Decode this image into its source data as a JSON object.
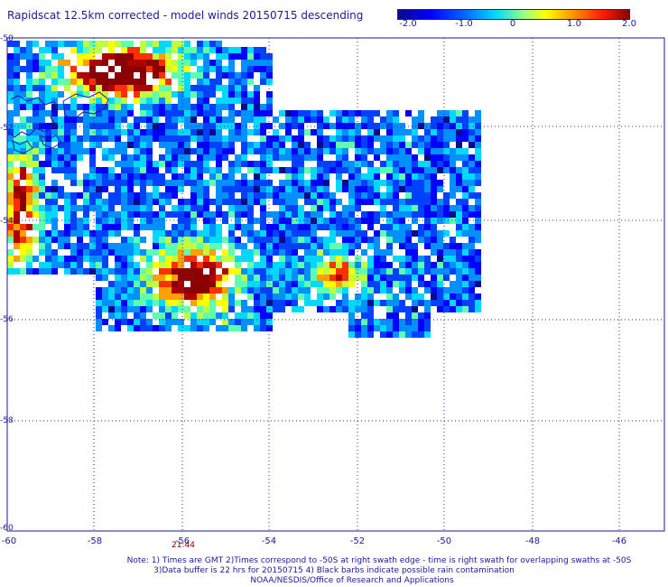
{
  "title": "Rapidscat 12.5km corrected - model winds 20150715 descending",
  "colorbar": {
    "ticks": [
      "-2.0",
      "-1.0",
      "0",
      "1.0",
      "2.0"
    ],
    "colors": [
      "#0a0a8a",
      "#0000ff",
      "#00d8ff",
      "#ffff00",
      "#ff2000",
      "#8b0000"
    ]
  },
  "axes": {
    "y_ticks": [
      "-50",
      "-52",
      "-54",
      "-56",
      "-58",
      "-60"
    ],
    "x_ticks": [
      "-60",
      "-58",
      "-56",
      "-54",
      "-52",
      "-50",
      "-48",
      "-46"
    ]
  },
  "time_label": "21:44",
  "notes": [
    "Note: 1) Times are GMT 2)Times correspond to -50S at right swath edge - time is right swath for overlapping swaths at -50S",
    "3)Data buffer is 22 hrs for 20150715 4) Black barbs indicate possible rain contamination",
    "NOAA/NESDIS/Office of Research and Applications"
  ]
}
